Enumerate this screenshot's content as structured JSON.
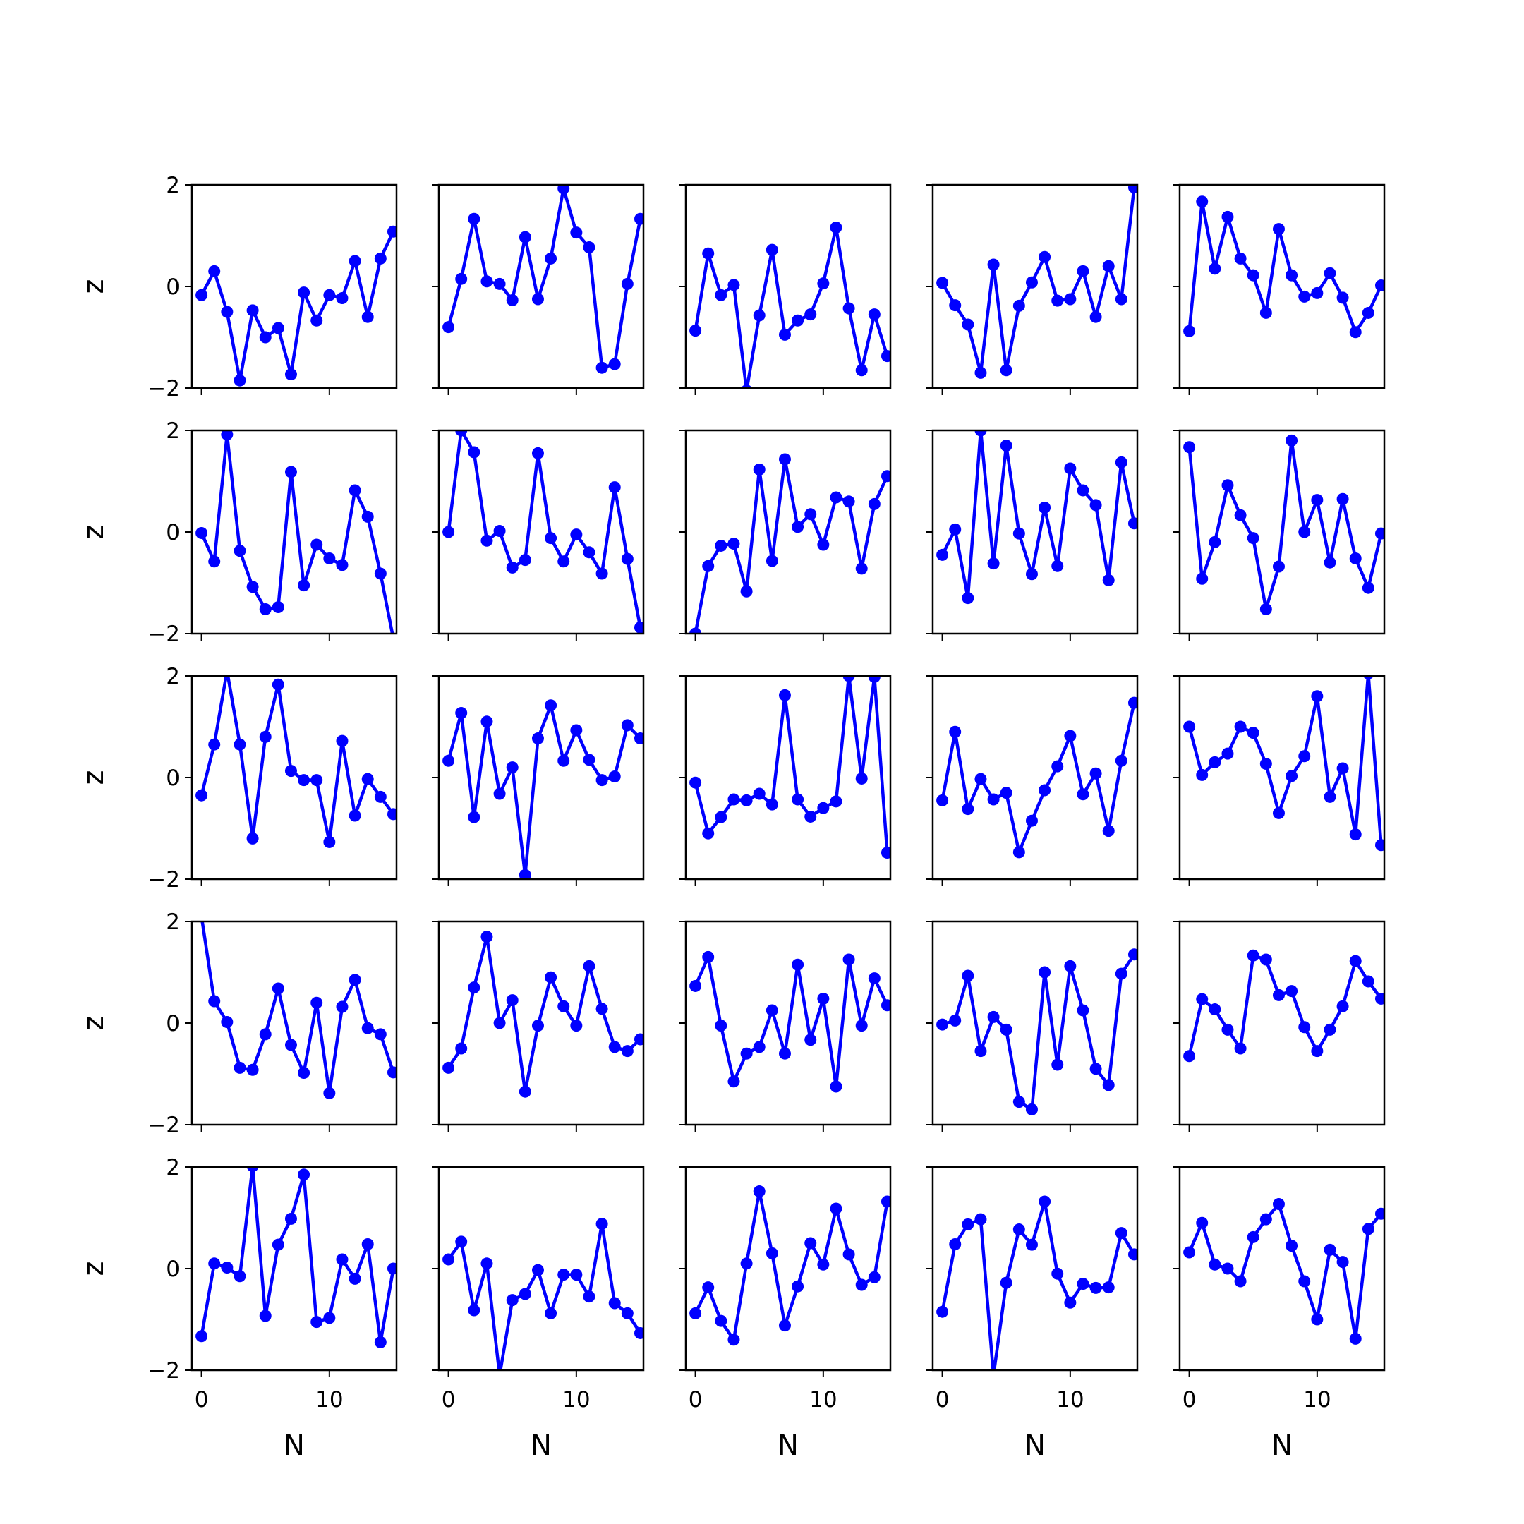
{
  "figure": {
    "rows": 5,
    "cols": 5,
    "xlabel": "N",
    "ylabel": "z",
    "xlim": [
      -0.75,
      15.25
    ],
    "ylim": [
      -2,
      2
    ],
    "xticks": [
      0,
      10
    ],
    "yticks": [
      -2,
      0,
      2
    ],
    "line_color": "#0000ff"
  },
  "chart_data": [
    {
      "type": "line",
      "row": 0,
      "col": 0,
      "x": [
        0,
        1,
        2,
        3,
        4,
        5,
        6,
        7,
        8,
        9,
        10,
        11,
        12,
        13,
        14,
        15
      ],
      "values": [
        -0.17,
        0.3,
        -0.5,
        -1.85,
        -0.47,
        -1.0,
        -0.82,
        -1.73,
        -0.12,
        -0.67,
        -0.17,
        -0.23,
        0.5,
        -0.6,
        0.55,
        1.08
      ]
    },
    {
      "type": "line",
      "row": 0,
      "col": 1,
      "x": [
        0,
        1,
        2,
        3,
        4,
        5,
        6,
        7,
        8,
        9,
        10,
        11,
        12,
        13,
        14,
        15
      ],
      "values": [
        -0.8,
        0.15,
        1.33,
        0.1,
        0.05,
        -0.27,
        0.97,
        -0.25,
        0.55,
        1.93,
        1.06,
        0.77,
        -1.6,
        -1.53,
        0.05,
        1.33
      ]
    },
    {
      "type": "line",
      "row": 0,
      "col": 2,
      "x": [
        0,
        1,
        2,
        3,
        4,
        5,
        6,
        7,
        8,
        9,
        10,
        11,
        12,
        13,
        14,
        15
      ],
      "values": [
        -0.87,
        0.65,
        -0.17,
        0.03,
        -2.05,
        -0.57,
        0.72,
        -0.95,
        -0.67,
        -0.55,
        0.06,
        1.16,
        -0.43,
        -1.65,
        -0.55,
        -1.37
      ]
    },
    {
      "type": "line",
      "row": 0,
      "col": 3,
      "x": [
        0,
        1,
        2,
        3,
        4,
        5,
        6,
        7,
        8,
        9,
        10,
        11,
        12,
        13,
        14,
        15
      ],
      "values": [
        0.07,
        -0.37,
        -0.75,
        -1.7,
        0.43,
        -1.65,
        -0.38,
        0.08,
        0.58,
        -0.28,
        -0.25,
        0.3,
        -0.6,
        0.4,
        -0.25,
        1.95
      ]
    },
    {
      "type": "line",
      "row": 0,
      "col": 4,
      "x": [
        0,
        1,
        2,
        3,
        4,
        5,
        6,
        7,
        8,
        9,
        10,
        11,
        12,
        13,
        14,
        15
      ],
      "values": [
        -0.88,
        1.67,
        0.35,
        1.37,
        0.55,
        0.22,
        -0.52,
        1.13,
        0.22,
        -0.2,
        -0.13,
        0.26,
        -0.22,
        -0.9,
        -0.52,
        0.02
      ]
    },
    {
      "type": "line",
      "row": 1,
      "col": 0,
      "x": [
        0,
        1,
        2,
        3,
        4,
        5,
        6,
        7,
        8,
        9,
        10,
        11,
        12,
        13,
        14,
        15
      ],
      "values": [
        -0.02,
        -0.58,
        1.92,
        -0.37,
        -1.08,
        -1.52,
        -1.48,
        1.18,
        -1.05,
        -0.25,
        -0.52,
        -0.65,
        0.82,
        0.3,
        -0.82,
        -2.1
      ]
    },
    {
      "type": "line",
      "row": 1,
      "col": 1,
      "x": [
        0,
        1,
        2,
        3,
        4,
        5,
        6,
        7,
        8,
        9,
        10,
        11,
        12,
        13,
        14,
        15
      ],
      "values": [
        0.0,
        2.0,
        1.57,
        -0.17,
        0.02,
        -0.7,
        -0.55,
        1.55,
        -0.12,
        -0.58,
        -0.05,
        -0.4,
        -0.82,
        0.88,
        -0.53,
        -1.88
      ]
    },
    {
      "type": "line",
      "row": 1,
      "col": 2,
      "x": [
        0,
        1,
        2,
        3,
        4,
        5,
        6,
        7,
        8,
        9,
        10,
        11,
        12,
        13,
        14,
        15
      ],
      "values": [
        -2.0,
        -0.67,
        -0.27,
        -0.23,
        -1.17,
        1.23,
        -0.57,
        1.43,
        0.1,
        0.35,
        -0.25,
        0.68,
        0.6,
        -0.72,
        0.55,
        1.1
      ]
    },
    {
      "type": "line",
      "row": 1,
      "col": 3,
      "x": [
        0,
        1,
        2,
        3,
        4,
        5,
        6,
        7,
        8,
        9,
        10,
        11,
        12,
        13,
        14,
        15
      ],
      "values": [
        -0.45,
        0.05,
        -1.3,
        2.0,
        -0.62,
        1.7,
        -0.03,
        -0.83,
        0.48,
        -0.67,
        1.25,
        0.82,
        0.53,
        -0.95,
        1.37,
        0.17
      ]
    },
    {
      "type": "line",
      "row": 1,
      "col": 4,
      "x": [
        0,
        1,
        2,
        3,
        4,
        5,
        6,
        7,
        8,
        9,
        10,
        11,
        12,
        13,
        14,
        15
      ],
      "values": [
        1.67,
        -0.92,
        -0.2,
        0.92,
        0.33,
        -0.12,
        -1.52,
        -0.68,
        1.8,
        0.0,
        0.63,
        -0.6,
        0.65,
        -0.52,
        -1.1,
        -0.03
      ]
    },
    {
      "type": "line",
      "row": 2,
      "col": 0,
      "x": [
        0,
        1,
        2,
        3,
        4,
        5,
        6,
        7,
        8,
        9,
        10,
        11,
        12,
        13,
        14,
        15
      ],
      "values": [
        -0.35,
        0.65,
        2.1,
        0.65,
        -1.2,
        0.8,
        1.83,
        0.13,
        -0.05,
        -0.05,
        -1.27,
        0.72,
        -0.75,
        -0.03,
        -0.38,
        -0.72
      ]
    },
    {
      "type": "line",
      "row": 2,
      "col": 1,
      "x": [
        0,
        1,
        2,
        3,
        4,
        5,
        6,
        7,
        8,
        9,
        10,
        11,
        12,
        13,
        14,
        15
      ],
      "values": [
        0.33,
        1.27,
        -0.78,
        1.1,
        -0.32,
        0.2,
        -1.92,
        0.77,
        1.42,
        0.33,
        0.93,
        0.35,
        -0.05,
        0.02,
        1.03,
        0.77
      ]
    },
    {
      "type": "line",
      "row": 2,
      "col": 2,
      "x": [
        0,
        1,
        2,
        3,
        4,
        5,
        6,
        7,
        8,
        9,
        10,
        11,
        12,
        13,
        14,
        15
      ],
      "values": [
        -0.1,
        -1.1,
        -0.78,
        -0.43,
        -0.45,
        -0.32,
        -0.53,
        1.62,
        -0.43,
        -0.77,
        -0.6,
        -0.47,
        2.0,
        -0.02,
        1.98,
        -1.48
      ]
    },
    {
      "type": "line",
      "row": 2,
      "col": 3,
      "x": [
        0,
        1,
        2,
        3,
        4,
        5,
        6,
        7,
        8,
        9,
        10,
        11,
        12,
        13,
        14,
        15
      ],
      "values": [
        -0.45,
        0.9,
        -0.62,
        -0.03,
        -0.43,
        -0.3,
        -1.47,
        -0.85,
        -0.25,
        0.22,
        0.82,
        -0.33,
        0.08,
        -1.05,
        0.33,
        1.47
      ]
    },
    {
      "type": "line",
      "row": 2,
      "col": 4,
      "x": [
        0,
        1,
        2,
        3,
        4,
        5,
        6,
        7,
        8,
        9,
        10,
        11,
        12,
        13,
        14,
        15
      ],
      "values": [
        1.0,
        0.05,
        0.3,
        0.47,
        1.0,
        0.88,
        0.27,
        -0.7,
        0.03,
        0.42,
        1.6,
        -0.38,
        0.18,
        -1.12,
        2.05,
        -1.33
      ]
    },
    {
      "type": "line",
      "row": 3,
      "col": 0,
      "x": [
        0,
        1,
        2,
        3,
        4,
        5,
        6,
        7,
        8,
        9,
        10,
        11,
        12,
        13,
        14,
        15
      ],
      "values": [
        2.1,
        0.43,
        0.02,
        -0.88,
        -0.92,
        -0.22,
        0.68,
        -0.43,
        -0.98,
        0.4,
        -1.38,
        0.32,
        0.85,
        -0.1,
        -0.22,
        -0.97
      ]
    },
    {
      "type": "line",
      "row": 3,
      "col": 1,
      "x": [
        0,
        1,
        2,
        3,
        4,
        5,
        6,
        7,
        8,
        9,
        10,
        11,
        12,
        13,
        14,
        15
      ],
      "values": [
        -0.88,
        -0.5,
        0.7,
        1.7,
        0.0,
        0.45,
        -1.35,
        -0.05,
        0.9,
        0.33,
        -0.05,
        1.12,
        0.28,
        -0.47,
        -0.55,
        -0.32
      ]
    },
    {
      "type": "line",
      "row": 3,
      "col": 2,
      "x": [
        0,
        1,
        2,
        3,
        4,
        5,
        6,
        7,
        8,
        9,
        10,
        11,
        12,
        13,
        14,
        15
      ],
      "values": [
        0.73,
        1.3,
        -0.05,
        -1.15,
        -0.6,
        -0.47,
        0.25,
        -0.6,
        1.15,
        -0.33,
        0.48,
        -1.25,
        1.25,
        -0.05,
        0.88,
        0.35
      ]
    },
    {
      "type": "line",
      "row": 3,
      "col": 3,
      "x": [
        0,
        1,
        2,
        3,
        4,
        5,
        6,
        7,
        8,
        9,
        10,
        11,
        12,
        13,
        14,
        15
      ],
      "values": [
        -0.03,
        0.05,
        0.93,
        -0.55,
        0.12,
        -0.13,
        -1.55,
        -1.7,
        1.0,
        -0.82,
        1.12,
        0.25,
        -0.9,
        -1.22,
        0.97,
        1.35
      ]
    },
    {
      "type": "line",
      "row": 3,
      "col": 4,
      "x": [
        0,
        1,
        2,
        3,
        4,
        5,
        6,
        7,
        8,
        9,
        10,
        11,
        12,
        13,
        14,
        15
      ],
      "values": [
        -0.65,
        0.47,
        0.27,
        -0.13,
        -0.5,
        1.33,
        1.25,
        0.55,
        0.63,
        -0.08,
        -0.55,
        -0.13,
        0.33,
        1.22,
        0.82,
        0.48
      ]
    },
    {
      "type": "line",
      "row": 4,
      "col": 0,
      "x": [
        0,
        1,
        2,
        3,
        4,
        5,
        6,
        7,
        8,
        9,
        10,
        11,
        12,
        13,
        14,
        15
      ],
      "values": [
        -1.33,
        0.1,
        0.02,
        -0.15,
        2.02,
        -0.93,
        0.47,
        0.98,
        1.85,
        -1.05,
        -0.97,
        0.18,
        -0.2,
        0.48,
        -1.45,
        0.0
      ]
    },
    {
      "type": "line",
      "row": 4,
      "col": 1,
      "x": [
        0,
        1,
        2,
        3,
        4,
        5,
        6,
        7,
        8,
        9,
        10,
        11,
        12,
        13,
        14,
        15
      ],
      "values": [
        0.18,
        0.53,
        -0.82,
        0.1,
        -2.1,
        -0.62,
        -0.5,
        -0.03,
        -0.88,
        -0.12,
        -0.12,
        -0.55,
        0.88,
        -0.68,
        -0.88,
        -1.27
      ]
    },
    {
      "type": "line",
      "row": 4,
      "col": 2,
      "x": [
        0,
        1,
        2,
        3,
        4,
        5,
        6,
        7,
        8,
        9,
        10,
        11,
        12,
        13,
        14,
        15
      ],
      "values": [
        -0.88,
        -0.37,
        -1.03,
        -1.4,
        0.1,
        1.52,
        0.3,
        -1.12,
        -0.35,
        0.5,
        0.08,
        1.18,
        0.28,
        -0.32,
        -0.17,
        1.32
      ]
    },
    {
      "type": "line",
      "row": 4,
      "col": 3,
      "x": [
        0,
        1,
        2,
        3,
        4,
        5,
        6,
        7,
        8,
        9,
        10,
        11,
        12,
        13,
        14,
        15
      ],
      "values": [
        -0.85,
        0.48,
        0.87,
        0.97,
        -2.1,
        -0.28,
        0.77,
        0.47,
        1.32,
        -0.1,
        -0.67,
        -0.3,
        -0.38,
        -0.37,
        0.7,
        0.28
      ]
    },
    {
      "type": "line",
      "row": 4,
      "col": 4,
      "x": [
        0,
        1,
        2,
        3,
        4,
        5,
        6,
        7,
        8,
        9,
        10,
        11,
        12,
        13,
        14,
        15
      ],
      "values": [
        0.32,
        0.9,
        0.08,
        0.0,
        -0.25,
        0.62,
        0.97,
        1.27,
        0.45,
        -0.25,
        -1.0,
        0.37,
        0.13,
        -1.38,
        0.78,
        1.08
      ]
    }
  ]
}
